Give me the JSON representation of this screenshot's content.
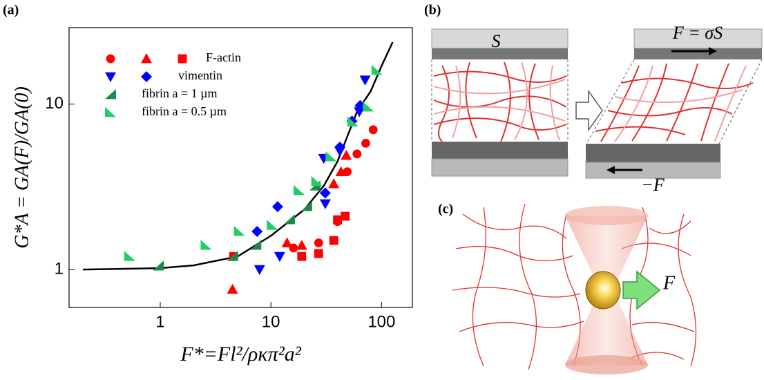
{
  "chart_data": {
    "type": "scatter",
    "ylabel": "G*A = GA(F)/GA(0)",
    "xlabel": "F*=Fl²/ρκπ²a²",
    "xscale": "log",
    "yscale": "log",
    "xlim": [
      0.15,
      190
    ],
    "ylim": [
      0.59,
      29
    ],
    "xticks": [
      1,
      10,
      100
    ],
    "yticks": [
      1,
      10
    ],
    "legend": "upper left",
    "series": [
      {
        "name": "F-actin",
        "color": "#ff0000",
        "markers": [
          {
            "marker": "circle",
            "x": [
              16,
              27,
              40,
              49,
              60,
              72,
              84
            ],
            "y": [
              1.35,
              1.45,
              1.95,
              3.9,
              5.0,
              5.8,
              7.0
            ]
          },
          {
            "marker": "triangle-up",
            "x": [
              4.5,
              14,
              19,
              37,
              43,
              48
            ],
            "y": [
              0.76,
              1.45,
              1.4,
              3.3,
              3.9,
              4.9
            ]
          },
          {
            "marker": "square",
            "x": [
              4.6,
              19,
              27,
              37,
              40,
              47
            ],
            "y": [
              1.2,
              1.2,
              1.25,
              1.5,
              2.0,
              2.1
            ]
          }
        ]
      },
      {
        "name": "vimentin",
        "color": "#0000ff",
        "markers": [
          {
            "marker": "triangle-down",
            "x": [
              7.9,
              12,
              31,
              30,
              42,
              63,
              71
            ],
            "y": [
              1.0,
              1.2,
              2.5,
              4.7,
              5.2,
              9.0,
              14
            ]
          },
          {
            "marker": "diamond",
            "x": [
              7.5,
              11.5,
              31,
              42,
              54,
              64
            ],
            "y": [
              1.7,
              2.4,
              2.9,
              5.5,
              7.9,
              9.8
            ]
          }
        ]
      },
      {
        "name": "fibrin a = 1 µm",
        "color": "#1a8a4a",
        "markers": [
          {
            "marker": "triangle-left",
            "x": [
              0.96,
              4.5,
              7.3,
              14.7,
              21,
              25
            ],
            "y": [
              1.05,
              1.2,
              1.4,
              2.0,
              2.4,
              3.2
            ]
          }
        ]
      },
      {
        "name": "fibrin a = 0.5 µm",
        "color": "#22cc66",
        "markers": [
          {
            "marker": "triangle-right",
            "x": [
              0.53,
              2.6,
              5.2,
              10.3,
              18,
              26,
              35,
              55,
              76,
              91
            ],
            "y": [
              1.2,
              1.4,
              1.7,
              1.85,
              3.0,
              3.4,
              4.8,
              7.8,
              9.6,
              16
            ]
          }
        ]
      }
    ],
    "curve": {
      "color": "#000000",
      "x": [
        0.2,
        1,
        2,
        5,
        10,
        20,
        30,
        40,
        60,
        80,
        100,
        126
      ],
      "y": [
        1.0,
        1.02,
        1.06,
        1.2,
        1.6,
        2.3,
        3.2,
        4.5,
        9,
        12,
        17,
        23.7
      ]
    }
  },
  "panels": {
    "a": {
      "label": "(a)"
    },
    "b": {
      "label": "(b)",
      "plate_label": "S",
      "force_label": "F = σS",
      "reaction_label": "−F"
    },
    "c": {
      "label": "(c)",
      "force_label": "F"
    }
  }
}
